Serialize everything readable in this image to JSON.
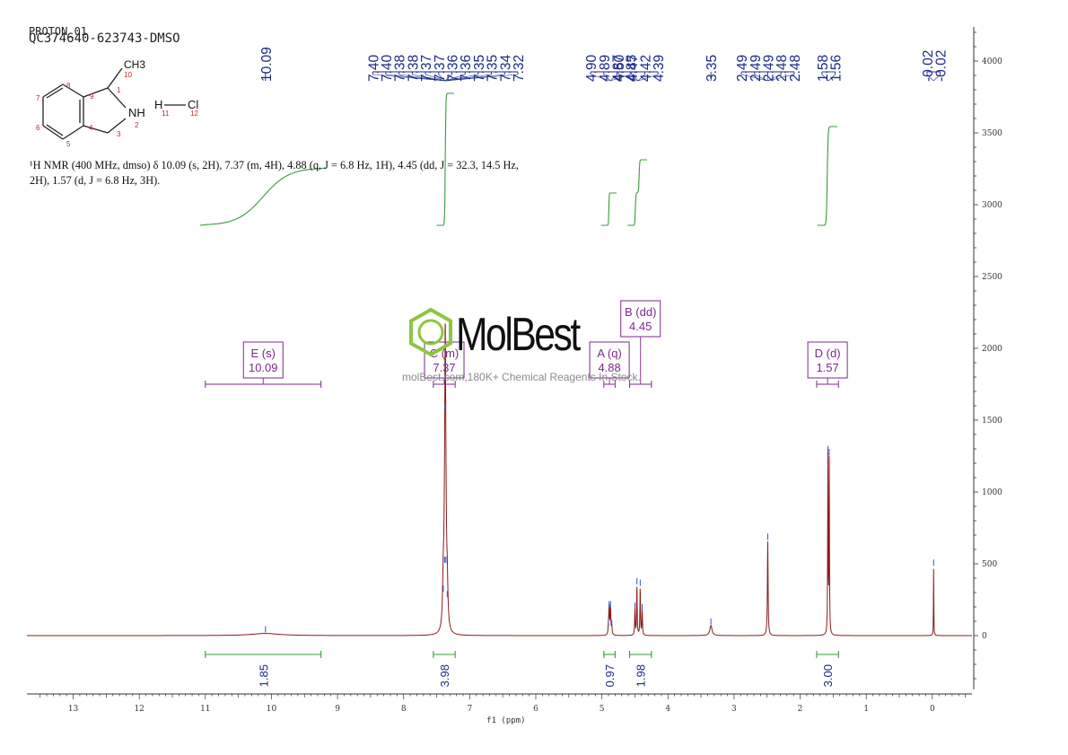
{
  "header": {
    "line1": "PROTON_01",
    "line2": "QC374640-623743-DMSO"
  },
  "nmr_description": "¹H NMR (400 MHz, dmso) δ 10.09 (s, 2H), 7.37 (m, 4H), 4.88 (q, J = 6.8 Hz, 1H), 4.45 (dd, J = 32.3, 14.5 Hz, 2H), 1.57 (d, J = 6.8 Hz, 3H).",
  "structure": {
    "methyl": "CH3",
    "nh": "NH",
    "h": "H",
    "cl": "Cl",
    "atom_numbers": [
      "1",
      "2",
      "3",
      "4",
      "5",
      "6",
      "7",
      "8",
      "9",
      "10",
      "11",
      "12"
    ]
  },
  "watermark": {
    "name": "MolBest",
    "text": "molBest.com,180K+ Chemical Reagents In Stock."
  },
  "colors": {
    "spectrum": "#8b1a1a",
    "integral_curve": "#3a9a3a",
    "peak_labels": "#1a2a8a",
    "multiplet_box": "#7a2a8a",
    "structure_numbers": "#cc2222"
  },
  "chart_data": {
    "type": "line",
    "xlabel": "f1 (ppm)",
    "ylabel": "",
    "xlim": [
      13.7,
      -0.6
    ],
    "ylim": [
      -400,
      4200
    ],
    "x_ticks": [
      13,
      12,
      11,
      10,
      9,
      8,
      7,
      6,
      5,
      4,
      3,
      2,
      1,
      0
    ],
    "y_ticks": [
      0,
      500,
      1000,
      1500,
      2000,
      2500,
      3000,
      3500,
      4000
    ],
    "peak_label_groups": [
      {
        "ppm": 10.09,
        "labels": [
          "10.09"
        ]
      },
      {
        "ppm": 7.37,
        "labels": [
          "7.40",
          "7.40",
          "7.38",
          "7.38",
          "7.37",
          "7.37",
          "7.36",
          "7.36",
          "7.35",
          "7.35",
          "7.34",
          "7.32"
        ]
      },
      {
        "ppm": 4.87,
        "labels": [
          "4.90",
          "4.89",
          "4.87",
          "4.85"
        ]
      },
      {
        "ppm": 4.45,
        "labels": [
          "4.50",
          "4.47",
          "4.42",
          "4.39"
        ]
      },
      {
        "ppm": 3.35,
        "labels": [
          "3.35"
        ]
      },
      {
        "ppm": 2.49,
        "labels": [
          "2.49",
          "2.49",
          "2.49",
          "2.48",
          "2.48"
        ]
      },
      {
        "ppm": 1.57,
        "labels": [
          "1.58",
          "1.56"
        ]
      },
      {
        "ppm": -0.02,
        "labels": [
          "-0.02",
          "-0.02"
        ]
      }
    ],
    "peaks": [
      {
        "ppm": 10.09,
        "height": 15,
        "width": 0.25
      },
      {
        "ppm": 7.4,
        "height": 300,
        "width": 0.012
      },
      {
        "ppm": 7.38,
        "height": 500,
        "width": 0.012
      },
      {
        "ppm": 7.37,
        "height": 1560,
        "width": 0.008
      },
      {
        "ppm": 7.36,
        "height": 500,
        "width": 0.012
      },
      {
        "ppm": 7.34,
        "height": 260,
        "width": 0.012
      },
      {
        "ppm": 4.9,
        "height": 60,
        "width": 0.006
      },
      {
        "ppm": 4.89,
        "height": 190,
        "width": 0.006
      },
      {
        "ppm": 4.87,
        "height": 190,
        "width": 0.006
      },
      {
        "ppm": 4.85,
        "height": 60,
        "width": 0.006
      },
      {
        "ppm": 4.5,
        "height": 180,
        "width": 0.005
      },
      {
        "ppm": 4.47,
        "height": 350,
        "width": 0.005
      },
      {
        "ppm": 4.42,
        "height": 340,
        "width": 0.005
      },
      {
        "ppm": 4.39,
        "height": 170,
        "width": 0.005
      },
      {
        "ppm": 3.35,
        "height": 70,
        "width": 0.02
      },
      {
        "ppm": 2.49,
        "height": 660,
        "width": 0.006
      },
      {
        "ppm": 1.58,
        "height": 1270,
        "width": 0.004
      },
      {
        "ppm": 1.56,
        "height": 1250,
        "width": 0.004
      },
      {
        "ppm": -0.02,
        "height": 480,
        "width": 0.003
      }
    ],
    "multiplets": [
      {
        "label": "E (s)",
        "shift": "10.09",
        "range": [
          11.0,
          9.25
        ]
      },
      {
        "label": "C (m)",
        "shift": "7.37",
        "range": [
          7.55,
          7.22
        ]
      },
      {
        "label": "A (q)",
        "shift": "4.88",
        "range": [
          4.97,
          4.8
        ]
      },
      {
        "label": "B (dd)",
        "shift": "4.45",
        "range": [
          4.58,
          4.25
        ]
      },
      {
        "label": "D (d)",
        "shift": "1.57",
        "range": [
          1.75,
          1.42
        ]
      }
    ],
    "integrals": [
      {
        "value": "1.85",
        "range": [
          11.0,
          9.25
        ]
      },
      {
        "value": "3.98",
        "range": [
          7.55,
          7.22
        ]
      },
      {
        "value": "0.97",
        "range": [
          4.97,
          4.8
        ]
      },
      {
        "value": "1.98",
        "range": [
          4.58,
          4.25
        ]
      },
      {
        "value": "3.00",
        "range": [
          1.75,
          1.42
        ]
      }
    ]
  }
}
